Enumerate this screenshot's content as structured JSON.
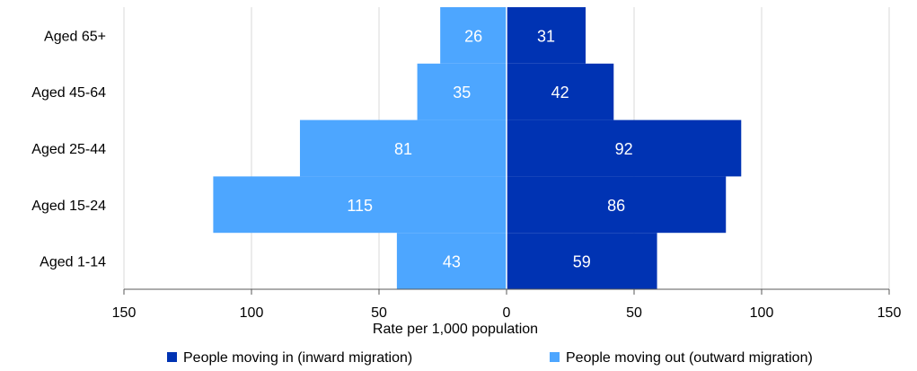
{
  "chart_data": {
    "type": "bar",
    "orientation": "horizontal-diverging",
    "categories": [
      "Aged 65+",
      "Aged 45-64",
      "Aged 25-44",
      "Aged 15-24",
      "Aged 1-14"
    ],
    "series": [
      {
        "name": "People moving in (inward migration)",
        "values": [
          31,
          42,
          92,
          86,
          59
        ],
        "color": "#0033b3",
        "direction": "right"
      },
      {
        "name": "People moving out (outward migration)",
        "values": [
          26,
          35,
          81,
          115,
          43
        ],
        "color": "#4da6ff",
        "direction": "left"
      }
    ],
    "xlabel": "Rate per 1,000 population",
    "ylabel": "",
    "xlim": [
      -150,
      150
    ],
    "xticks": [
      -150,
      -100,
      -50,
      0,
      50,
      100,
      150
    ],
    "xtick_labels": [
      "150",
      "100",
      "50",
      "0",
      "50",
      "100",
      "150"
    ],
    "grid": true,
    "legend_position": "bottom"
  }
}
